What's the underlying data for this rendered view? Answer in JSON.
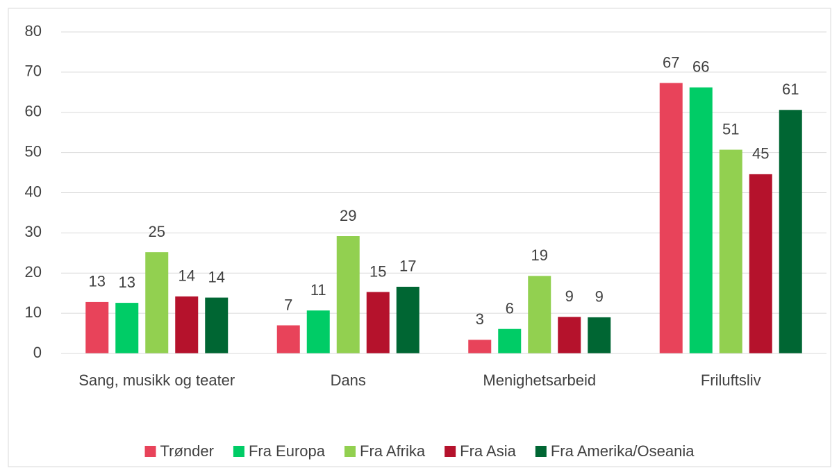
{
  "chart_data": {
    "type": "bar",
    "categories": [
      "Sang, musikk og teater",
      "Dans",
      "Menighetsarbeid",
      "Friluftsliv"
    ],
    "series": [
      {
        "name": "Trønder",
        "color": "#e8435a",
        "values": [
          12.8,
          7.0,
          3.4,
          67.3
        ],
        "value_labels": [
          "13",
          "7",
          "3",
          "67"
        ]
      },
      {
        "name": "Fra Europa",
        "color": "#00cc66",
        "values": [
          12.6,
          10.7,
          6.1,
          66.2
        ],
        "value_labels": [
          "13",
          "11",
          "6",
          "66"
        ]
      },
      {
        "name": "Fra Afrika",
        "color": "#92d050",
        "values": [
          25.2,
          29.2,
          19.3,
          50.7
        ],
        "value_labels": [
          "25",
          "29",
          "19",
          "51"
        ]
      },
      {
        "name": "Fra Asia",
        "color": "#b5122c",
        "values": [
          14.2,
          15.3,
          9.1,
          44.6
        ],
        "value_labels": [
          "14",
          "15",
          "9",
          "45"
        ]
      },
      {
        "name": "Fra Amerika/Oseania",
        "color": "#006633",
        "values": [
          13.9,
          16.6,
          9.0,
          60.6
        ],
        "value_labels": [
          "14",
          "17",
          "9",
          "61"
        ]
      }
    ],
    "ylim": [
      0,
      80
    ],
    "yticks": [
      0,
      10,
      20,
      30,
      40,
      50,
      60,
      70,
      80
    ],
    "grid": true,
    "legend": "bottom"
  }
}
